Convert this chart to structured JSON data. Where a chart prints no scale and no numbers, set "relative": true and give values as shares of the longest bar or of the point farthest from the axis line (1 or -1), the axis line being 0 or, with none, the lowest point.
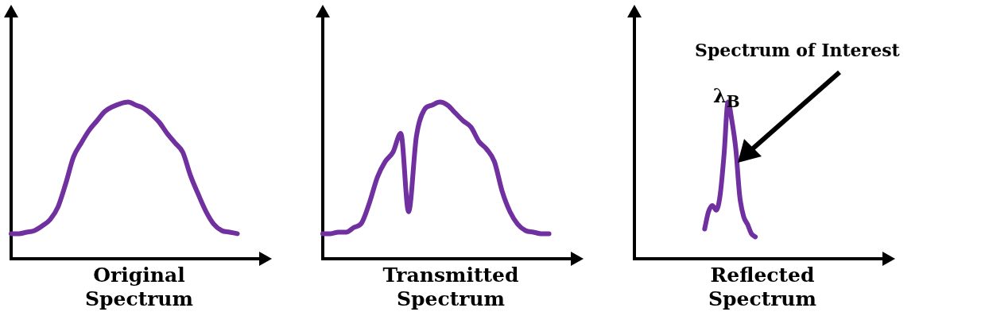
{
  "chart_data": [
    {
      "type": "line",
      "xlabel": "Original Spectrum",
      "relative": true,
      "marker": "none",
      "categories": [
        null,
        null,
        null,
        null,
        null,
        null,
        null,
        null,
        null,
        null,
        null,
        null,
        null,
        null,
        null,
        null,
        null,
        null,
        null,
        null,
        null,
        null,
        null,
        null,
        null,
        null,
        null,
        null,
        null,
        null,
        null,
        null,
        null
      ],
      "series": [
        {
          "color": "#7030a0",
          "values": [
            0.16,
            0.16,
            0.17,
            0.18,
            0.21,
            0.25,
            0.33,
            0.48,
            0.65,
            0.74,
            0.82,
            0.88,
            0.94,
            0.97,
            0.99,
            1,
            0.98,
            0.96,
            0.92,
            0.87,
            0.8,
            0.74,
            0.68,
            0.53,
            0.41,
            0.3,
            0.22,
            0.18,
            0.17,
            0.16,
            null,
            null,
            null
          ]
        }
      ]
    },
    {
      "type": "line",
      "xlabel": "Transmitted Spectrum",
      "relative": true,
      "marker": "none",
      "categories": [
        null,
        null,
        null,
        null,
        null,
        null,
        null,
        null,
        null,
        null,
        null,
        null,
        null,
        null,
        null,
        null,
        null,
        null,
        null,
        null,
        null,
        null,
        null,
        null,
        null,
        null,
        null,
        null,
        null,
        null,
        null,
        null,
        null
      ],
      "series": [
        {
          "color": "#7030a0",
          "values": [
            0.16,
            0.16,
            0.17,
            0.17,
            0.2,
            0.23,
            0.36,
            0.52,
            0.62,
            0.68,
            0.8,
            0.3,
            0.78,
            0.95,
            0.98,
            1,
            0.98,
            0.93,
            0.88,
            0.84,
            0.75,
            0.7,
            0.62,
            0.43,
            0.3,
            0.22,
            0.18,
            0.17,
            0.16,
            0.16,
            null,
            null,
            null
          ]
        }
      ]
    },
    {
      "type": "line",
      "xlabel": "Reflected Spectrum",
      "relative": true,
      "marker": "none",
      "annotations": [
        "Spectrum of Interest",
        "λ$_{B}$"
      ],
      "categories": [
        null,
        null,
        null,
        null,
        null,
        null,
        null,
        null,
        null,
        null,
        null,
        null,
        null,
        null,
        null,
        null,
        null,
        null,
        null,
        null,
        null,
        null,
        null,
        null,
        null,
        null,
        null,
        null,
        null,
        null,
        null,
        null,
        null,
        null,
        null,
        null,
        null,
        null,
        null,
        null,
        null,
        null,
        null,
        null,
        null,
        null,
        null,
        null,
        null,
        null,
        null,
        null,
        null,
        null,
        null,
        null,
        null,
        null,
        null,
        null,
        null,
        null,
        null,
        null,
        null
      ],
      "series": [
        {
          "color": "#7030a0",
          "values": [
            null,
            null,
            null,
            null,
            null,
            null,
            null,
            null,
            null,
            null,
            null,
            null,
            null,
            null,
            null,
            null,
            null,
            null,
            0.19,
            0.3,
            0.34,
            0.31,
            0.41,
            0.67,
            1,
            0.88,
            0.7,
            0.4,
            0.27,
            0.22,
            0.16,
            0.14,
            null,
            null,
            null,
            null,
            null,
            null,
            null,
            null,
            null,
            null,
            null,
            null,
            null,
            null,
            null,
            null,
            null,
            null,
            null,
            null,
            null,
            null,
            null,
            null,
            null,
            null,
            null,
            null,
            null,
            null,
            null,
            null,
            null
          ]
        }
      ]
    }
  ]
}
